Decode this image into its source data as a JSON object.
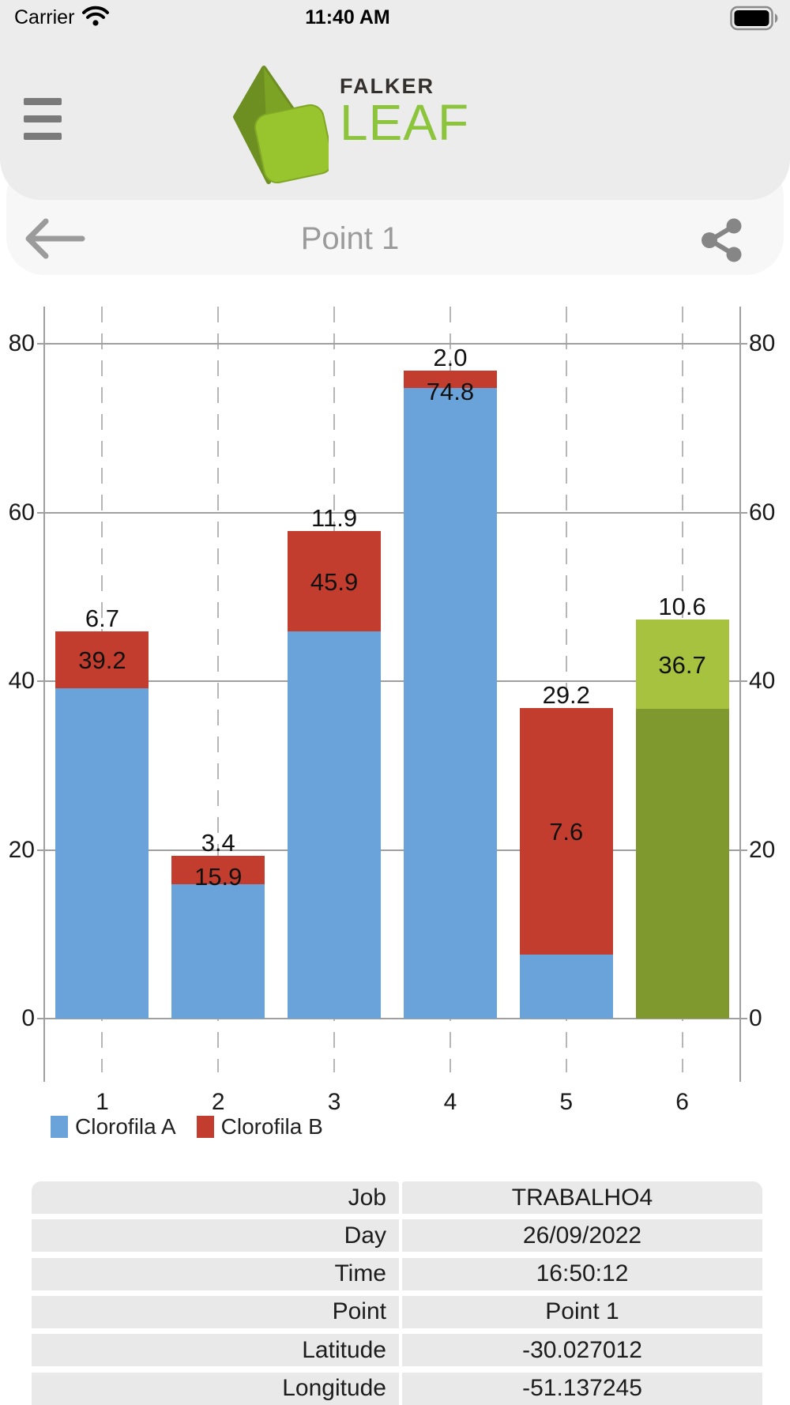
{
  "status_bar": {
    "carrier": "Carrier",
    "time": "11:40 AM",
    "wifi_icon": "wifi-icon",
    "battery_icon": "battery-full-icon"
  },
  "header": {
    "logo_top": "FALKER",
    "logo_main": "LEAF",
    "menu_icon": "hamburger-menu-icon"
  },
  "nav": {
    "title": "Point 1",
    "back_icon": "back-arrow-icon",
    "share_icon": "share-icon"
  },
  "chart_data": {
    "type": "bar",
    "stacked": true,
    "categories": [
      "1",
      "2",
      "3",
      "4",
      "5",
      "6"
    ],
    "series": [
      {
        "name": "Clorofila A",
        "values": [
          39.2,
          15.9,
          45.9,
          74.8,
          7.6,
          36.7
        ],
        "color": "#6aa3da",
        "color_average_bar": "#80992f"
      },
      {
        "name": "Clorofila B",
        "values": [
          6.7,
          3.4,
          11.9,
          2.0,
          29.2,
          10.6
        ],
        "color": "#c33d2e",
        "color_average_bar": "#a6c23e"
      }
    ],
    "average_bar_index": 5,
    "value_labels": true,
    "y_ticks": [
      0,
      20,
      40,
      60,
      80
    ],
    "y_ticks_right": [
      0,
      20,
      40,
      60,
      80
    ],
    "ylim": [
      0,
      84.4
    ],
    "grid": true,
    "gridline_color": "#9f9f9f",
    "category_dash_color": "#b6b6b6",
    "legend_position": "bottom-left"
  },
  "info_table": {
    "rows": [
      {
        "label": "Job",
        "value": "TRABALHO4"
      },
      {
        "label": "Day",
        "value": "26/09/2022"
      },
      {
        "label": "Time",
        "value": "16:50:12"
      },
      {
        "label": "Point",
        "value": "Point 1"
      },
      {
        "label": "Latitude",
        "value": "-30.027012"
      },
      {
        "label": "Longitude",
        "value": "-51.137245"
      }
    ]
  },
  "colors": {
    "header_bg": "#ececec",
    "nav_bg": "#f7f7f7",
    "page_bg": "#ffffff",
    "table_cell_bg": "#e9e9e9",
    "logo_green": "#8cc43c",
    "logo_dark": "#332f2c",
    "icon_gray": "#8a8a8a"
  }
}
